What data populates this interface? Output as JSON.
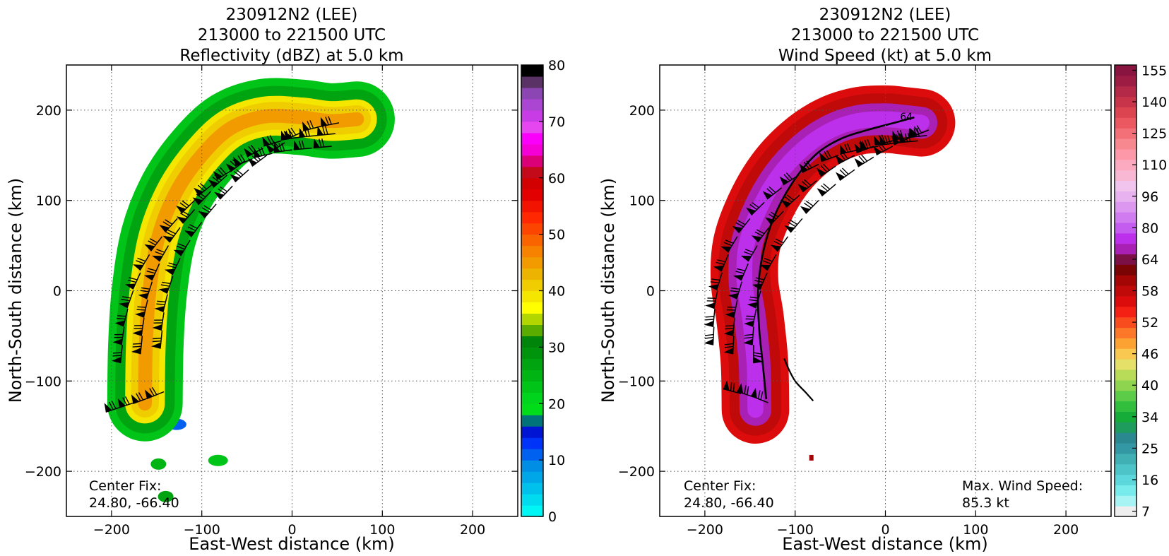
{
  "chart_data": [
    {
      "type": "heatmap",
      "title": [
        "230912N2 (LEE)",
        "213000 to 221500 UTC",
        "Reflectivity (dBZ) at 5.0 km"
      ],
      "xlabel": "East-West distance (km)",
      "ylabel": "North-South distance (km)",
      "xlim": [
        -250,
        250
      ],
      "ylim": [
        -250,
        250
      ],
      "xticks": [
        -200,
        -100,
        0,
        100,
        200
      ],
      "yticks": [
        -200,
        -100,
        0,
        100,
        200
      ],
      "grid": true,
      "annotation": [
        "Center Fix:",
        "24.80, -66.40"
      ],
      "colorbar": {
        "range": [
          0,
          80
        ],
        "tick_values": [
          0,
          10,
          20,
          30,
          40,
          50,
          60,
          70,
          80
        ],
        "colors": [
          "#00f5f5",
          "#00dbf0",
          "#00c1ec",
          "#00a7e8",
          "#008de4",
          "#0060f0",
          "#0033f8",
          "#0014d4",
          "#00727a",
          "#00dc1a",
          "#00d41c",
          "#00c418",
          "#00b414",
          "#00a410",
          "#00940c",
          "#00840a",
          "#5aac00",
          "#b2d600",
          "#ffff00",
          "#f5e600",
          "#f0cd00",
          "#ecb400",
          "#f29b00",
          "#f68200",
          "#fa6400",
          "#fc4600",
          "#ff2800",
          "#f21400",
          "#e20000",
          "#d20000",
          "#c20a1a",
          "#dc0078",
          "#f400d6",
          "#fa00fa",
          "#e646f0",
          "#c83ce6",
          "#aa46d2",
          "#8c46b4",
          "#5a3266",
          "#000000"
        ]
      },
      "band": {
        "x": [
          -163,
          -162,
          -158,
          -148,
          -128,
          -100,
          -68,
          -30,
          10,
          42,
          72
        ],
        "y": [
          -125,
          -60,
          0,
          60,
          110,
          150,
          180,
          193,
          192,
          188,
          190
        ]
      },
      "arc_source_range_km": [
        90,
        145
      ],
      "echo_patches": [
        {
          "x": -148,
          "y": -138
        },
        {
          "x": -128,
          "y": -148
        },
        {
          "x": -148,
          "y": -192
        },
        {
          "x": -82,
          "y": -188
        },
        {
          "x": -140,
          "y": -228
        }
      ],
      "barb_rows": [
        {
          "x": [
            -187,
            -172,
            -157,
            -142
          ],
          "y": [
            -128,
            -123,
            -118,
            -112
          ]
        },
        {
          "x": [
            -188,
            -186,
            -182,
            -176,
            -168,
            -158,
            -144,
            -127,
            -108,
            -88,
            -66,
            -44,
            -22,
            0,
            22,
            44
          ],
          "y": [
            -60,
            -40,
            -20,
            0,
            20,
            40,
            60,
            80,
            100,
            118,
            134,
            146,
            152,
            156,
            158,
            160
          ]
        },
        {
          "x": [
            -166,
            -164,
            -160,
            -155,
            -147,
            -137,
            -124,
            -108,
            -90,
            -72,
            -52,
            -32,
            -12,
            8,
            28,
            48
          ],
          "y": [
            -50,
            -30,
            -10,
            10,
            30,
            50,
            70,
            90,
            110,
            128,
            144,
            158,
            166,
            170,
            172,
            174
          ]
        },
        {
          "x": [
            -144,
            -142,
            -138,
            -132,
            -124,
            -113,
            -100,
            -84,
            -66,
            -48,
            -28,
            -8,
            12,
            32,
            52
          ],
          "y": [
            -44,
            -24,
            -4,
            16,
            36,
            56,
            76,
            96,
            116,
            134,
            150,
            164,
            176,
            182,
            186
          ]
        }
      ]
    },
    {
      "type": "heatmap",
      "title": [
        "230912N2 (LEE)",
        "213000 to 221500 UTC",
        "Wind Speed (kt) at 5.0 km"
      ],
      "xlabel": "East-West distance (km)",
      "ylabel": "North-South distance (km)",
      "xlim": [
        -250,
        250
      ],
      "ylim": [
        -250,
        250
      ],
      "xticks": [
        -200,
        -100,
        0,
        100,
        200
      ],
      "yticks": [
        -200,
        -100,
        0,
        100,
        200
      ],
      "grid": true,
      "annotation": [
        "Center Fix:",
        "24.80, -66.40"
      ],
      "max_wind_label": [
        "Max. Wind Speed:",
        "85.3 kt"
      ],
      "contour_label": "64",
      "colorbar": {
        "tick_labels": [
          "7",
          "16",
          "25",
          "34",
          "40",
          "46",
          "52",
          "58",
          "64",
          "80",
          "96",
          "110",
          "125",
          "140",
          "155"
        ],
        "tick_bins": [
          0,
          3,
          6,
          9,
          12,
          15,
          18,
          21,
          24,
          27,
          30,
          33,
          36,
          39,
          42
        ],
        "colors": [
          "#eeeeee",
          "#a8f4f4",
          "#78ecec",
          "#5cd8dc",
          "#4cc4c8",
          "#40b0b4",
          "#3498a4",
          "#2a8890",
          "#1e9c5e",
          "#16ac3a",
          "#30be3c",
          "#5ccc48",
          "#8ed44e",
          "#b8dc58",
          "#e4e068",
          "#f8c850",
          "#fba232",
          "#fc7828",
          "#f84c1e",
          "#f42014",
          "#dc0c0c",
          "#c00a0a",
          "#a40606",
          "#7a0404",
          "#7a1044",
          "#a820b4",
          "#bc30ec",
          "#c45cf0",
          "#d07cf0",
          "#dc98f0",
          "#e8b2f0",
          "#f0c4ec",
          "#f8b8d4",
          "#fcaac0",
          "#fc98a8",
          "#f88890",
          "#f47078",
          "#ec5860",
          "#dc4450",
          "#c8344a",
          "#b42848",
          "#9c1c44",
          "#8a1440"
        ]
      },
      "band": {
        "x": [
          -144,
          -145,
          -150,
          -156,
          -154,
          -140,
          -118,
          -90,
          -60,
          -30,
          0,
          22,
          40
        ],
        "y": [
          -132,
          -80,
          -30,
          10,
          50,
          90,
          128,
          158,
          178,
          188,
          190,
          188,
          186
        ]
      },
      "contour64": {
        "x": [
          -132,
          -136,
          -140,
          -141,
          -136,
          -124,
          -104,
          -78,
          -50,
          -20,
          10,
          32
        ],
        "y": [
          -120,
          -80,
          -40,
          0,
          40,
          80,
          118,
          150,
          168,
          178,
          186,
          192
        ]
      },
      "contour_small": {
        "x": [
          -112,
          -108,
          -100,
          -88,
          -80
        ],
        "y": [
          -75,
          -85,
          -100,
          -113,
          -122
        ]
      },
      "small_patch": {
        "x": -82,
        "y": -185
      },
      "barb_rows": [
        {
          "x": [
            -160,
            -145,
            -130
          ],
          "y": [
            -114,
            -118,
            -124
          ]
        },
        {
          "x": [
            -190,
            -189,
            -186,
            -181,
            -174,
            -164,
            -150,
            -134,
            -115,
            -96,
            -74,
            -52,
            -30,
            -8,
            14,
            36
          ],
          "y": [
            -40,
            -20,
            0,
            20,
            40,
            60,
            80,
            98,
            114,
            128,
            140,
            150,
            156,
            160,
            164,
            166
          ]
        },
        {
          "x": [
            -168,
            -167,
            -164,
            -159,
            -152,
            -142,
            -129,
            -113,
            -95,
            -76,
            -55,
            -34,
            -13,
            8,
            28,
            46
          ],
          "y": [
            -50,
            -30,
            -10,
            10,
            30,
            50,
            70,
            88,
            106,
            122,
            138,
            150,
            160,
            166,
            170,
            172
          ]
        },
        {
          "x": [
            -146,
            -146,
            -143,
            -138,
            -131,
            -121,
            -108,
            -92,
            -74,
            -55,
            -34,
            -13,
            8,
            28,
            48
          ],
          "y": [
            -60,
            -40,
            -20,
            0,
            20,
            40,
            60,
            80,
            100,
            118,
            134,
            148,
            160,
            170,
            178
          ]
        }
      ]
    }
  ]
}
